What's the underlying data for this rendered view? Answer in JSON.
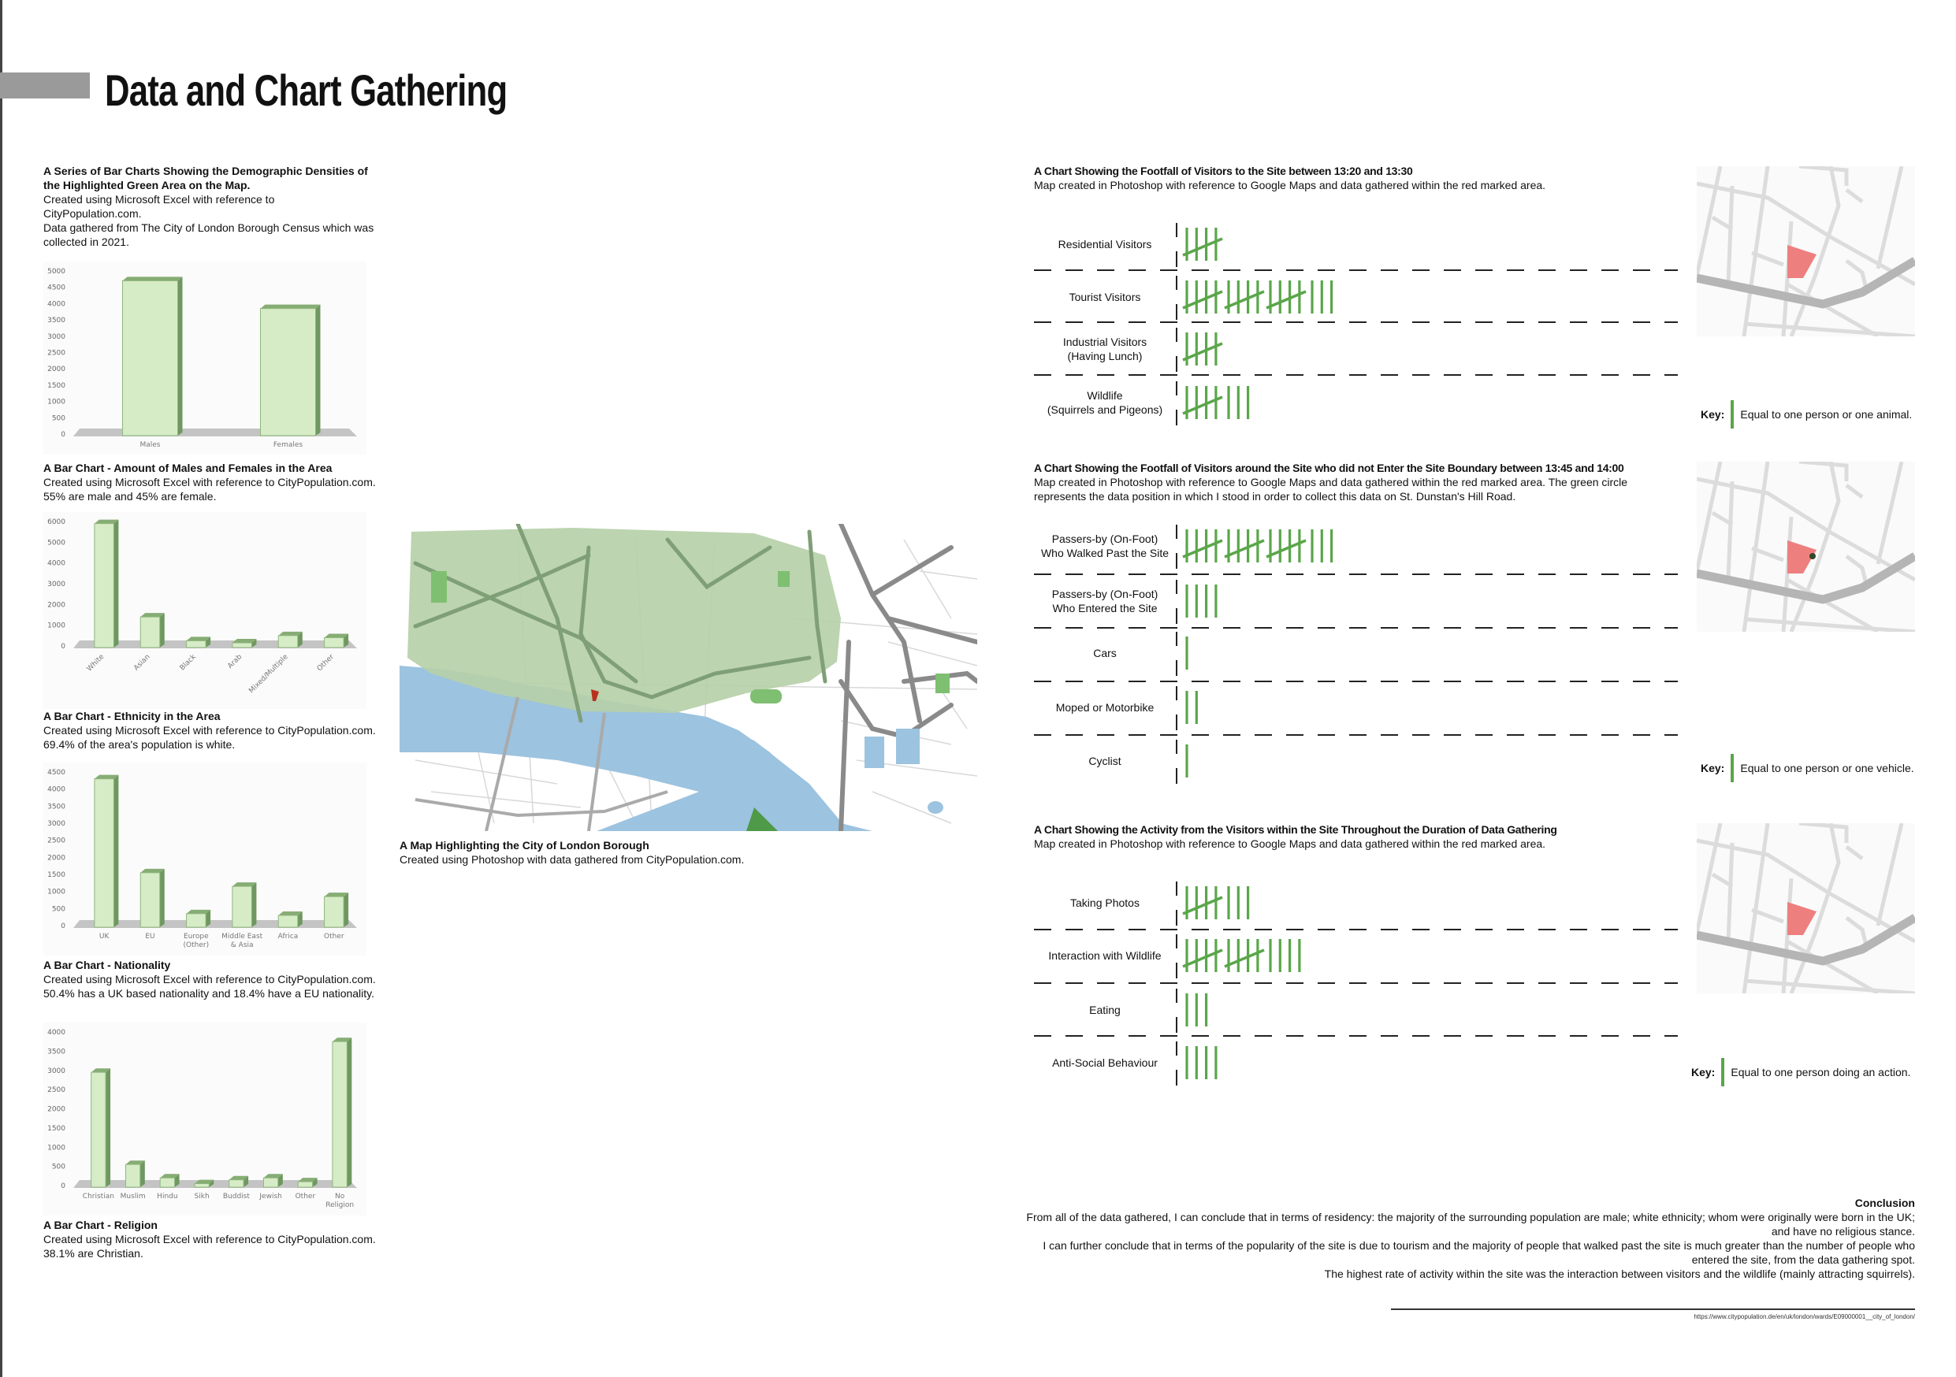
{
  "header": {
    "title": "Data and Chart Gathering"
  },
  "left": {
    "intro": {
      "heading": "A Series of Bar Charts Showing the Demographic Densities of the Highlighted Green Area on the Map.",
      "line1": "Created using Microsoft Excel with reference to CityPopulation.com.",
      "line2": "Data gathered from The City of London Borough Census which was collected in 2021."
    },
    "captions": [
      {
        "heading": "A Bar Chart - Amount of Males and Females in the Area",
        "body": "Created using Microsoft Excel with reference to CityPopulation.com. 55% are male and 45% are female."
      },
      {
        "heading": "A Bar Chart - Ethnicity in the Area",
        "body": "Created using Microsoft Excel with reference to CityPopulation.com. 69.4% of the area's population is white."
      },
      {
        "heading": "A Bar Chart - Nationality",
        "body": "Created using Microsoft Excel with reference to CityPopulation.com. 50.4% has a UK based nationality and 18.4% have a EU nationality."
      },
      {
        "heading": "A Bar Chart - Religion",
        "body": "Created using Microsoft Excel with reference to CityPopulation.com. 38.1% are Christian."
      }
    ]
  },
  "chart_data": [
    {
      "type": "bar",
      "categories": [
        "Males",
        "Females"
      ],
      "values": [
        4700,
        3850
      ],
      "ylim": [
        0,
        5000
      ],
      "yticks": [
        0,
        500,
        1000,
        1500,
        2000,
        2500,
        3000,
        3500,
        4000,
        4500,
        5000
      ],
      "grid": false,
      "label_rotation": 0
    },
    {
      "type": "bar",
      "categories": [
        "White",
        "Asian",
        "Black",
        "Arab",
        "Mixed/Multiple",
        "Other"
      ],
      "values": [
        5900,
        1400,
        250,
        150,
        500,
        400
      ],
      "ylim": [
        0,
        6000
      ],
      "yticks": [
        0,
        1000,
        2000,
        3000,
        4000,
        5000,
        6000
      ],
      "grid": false,
      "label_rotation": -45
    },
    {
      "type": "bar",
      "categories": [
        "UK",
        "EU",
        "Europe (Other)",
        "Middle East & Asia",
        "Africa",
        "Other"
      ],
      "values": [
        4300,
        1550,
        350,
        1150,
        300,
        850
      ],
      "ylim": [
        0,
        4500
      ],
      "yticks": [
        0,
        500,
        1000,
        1500,
        2000,
        2500,
        3000,
        3500,
        4000,
        4500
      ],
      "grid": false,
      "label_rotation": 0
    },
    {
      "type": "bar",
      "categories": [
        "Christian",
        "Muslim",
        "Hindu",
        "Sikh",
        "Buddist",
        "Jewish",
        "Other",
        "No Religion"
      ],
      "values": [
        2950,
        550,
        200,
        50,
        150,
        200,
        100,
        3750
      ],
      "ylim": [
        0,
        4000
      ],
      "yticks": [
        0,
        500,
        1000,
        1500,
        2000,
        2500,
        3000,
        3500,
        4000
      ],
      "grid": false,
      "label_rotation": 0
    }
  ],
  "map": {
    "heading": "A Map Highlighting the City of London Borough",
    "body": "Created using Photoshop with data gathered from CityPopulation.com.",
    "colors": {
      "borough": "#b6d0a8",
      "river": "#9cc3df",
      "site": "#b8321f",
      "parks": "#7fbf72"
    }
  },
  "tally_sections": [
    {
      "heading": "A Chart Showing the Footfall of Visitors to the Site between 13:20 and 13:30",
      "body": "Map created in Photoshop with reference to Google Maps and data gathered within the red marked area.",
      "rows": [
        {
          "label": "Residential Visitors",
          "count": 5
        },
        {
          "label": "Tourist Visitors",
          "count": 18
        },
        {
          "label": "Industrial Visitors\n(Having Lunch)",
          "count": 5
        },
        {
          "label": "Wildlife\n(Squirrels and Pigeons)",
          "count": 8
        }
      ],
      "key_label": "Key:",
      "key_text": "Equal to one person or one animal."
    },
    {
      "heading": "A Chart Showing the Footfall of Visitors around the Site who did not Enter the Site Boundary between 13:45 and 14:00",
      "body": "Map created in Photoshop with reference to Google Maps and data gathered within the red marked area. The green circle represents the data position in which I stood in order to collect this data on St. Dunstan's Hill Road.",
      "rows": [
        {
          "label": "Passers-by (On-Foot)\nWho Walked Past the Site",
          "count": 18
        },
        {
          "label": "Passers-by (On-Foot)\nWho Entered the Site",
          "count": 4
        },
        {
          "label": "Cars",
          "count": 1
        },
        {
          "label": "Moped or Motorbike",
          "count": 2
        },
        {
          "label": "Cyclist",
          "count": 1
        }
      ],
      "key_label": "Key:",
      "key_text": "Equal to one person or one vehicle."
    },
    {
      "heading": "A Chart Showing the Activity from the Visitors within the Site Throughout the Duration of Data Gathering",
      "body": "Map created in Photoshop with reference to Google Maps and data gathered within the red marked area.",
      "rows": [
        {
          "label": "Taking Photos",
          "count": 8
        },
        {
          "label": "Interaction with Wildlife",
          "count": 14
        },
        {
          "label": "Eating",
          "count": 3
        },
        {
          "label": "Anti-Social Behaviour",
          "count": 4
        }
      ],
      "key_label": "Key:",
      "key_text": "Equal to one person doing an action."
    }
  ],
  "tally_color": "#5aa64a",
  "conclusion": {
    "heading": "Conclusion",
    "p1": "From all of the data gathered, I can conclude that in terms of residency: the majority of the surrounding population are male; white ethnicity; whom were originally were born in the UK; and have no religious stance.",
    "p2": "I can further conclude that in terms of the popularity of the site is due to tourism and the majority of people that walked past the site is much greater than the number of people who entered the site, from the data gathering spot.",
    "p3": "The highest rate of activity within the site was the interaction between visitors and the wildlife (mainly attracting squirrels)."
  },
  "source_url": "https://www.citypopulation.de/en/uk/london/wards/E09000001__city_of_london/"
}
